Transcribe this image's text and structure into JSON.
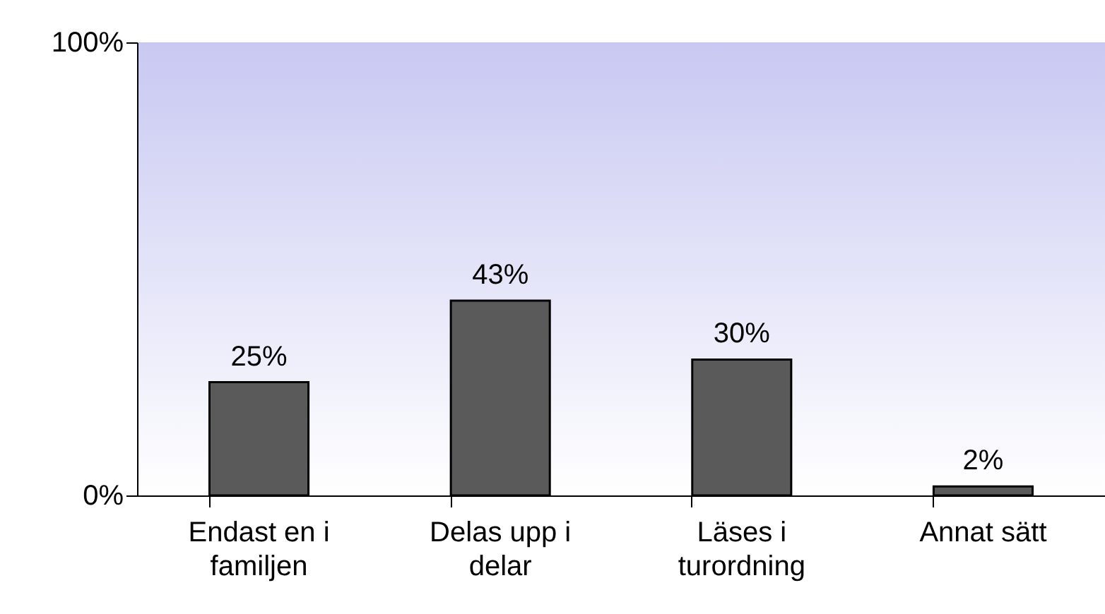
{
  "chart_data": {
    "type": "bar",
    "categories": [
      "Endast en i familjen",
      "Delas upp i delar",
      "Läses i turordning",
      "Annat sätt"
    ],
    "values": [
      25,
      43,
      30,
      2
    ],
    "value_labels": [
      "25%",
      "43%",
      "30%",
      "2%"
    ],
    "color": "#5a5a5a",
    "ylim": [
      0,
      100
    ],
    "yticks": [
      {
        "value": 0,
        "label": "0%"
      },
      {
        "value": 100,
        "label": "100%"
      }
    ],
    "grid": false
  }
}
